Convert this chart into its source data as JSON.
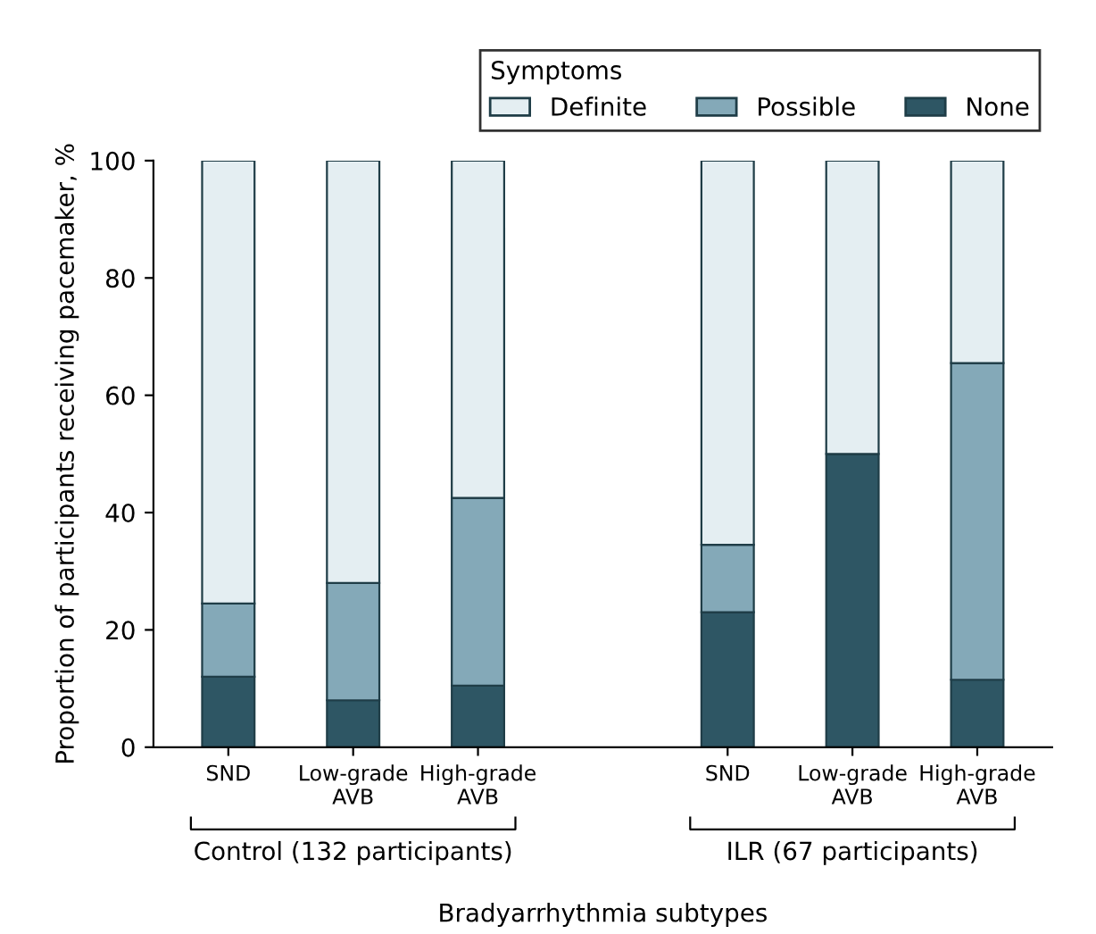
{
  "chart_data": {
    "type": "bar",
    "stacked": true,
    "xlabel": "Bradyarrhythmia subtypes",
    "ylabel": "Proportion of participants receiving pacemaker, %",
    "legend_title": "Symptoms",
    "categories": [
      "SND",
      "Low-grade AVB",
      "High-grade AVB",
      null,
      "SND",
      "Low-grade AVB",
      "High-grade AVB"
    ],
    "series": [
      {
        "name": "None",
        "color": "#2e5664",
        "values": [
          12,
          8,
          10.5,
          null,
          23,
          50,
          11.5
        ]
      },
      {
        "name": "Possible",
        "color": "#84a9b8",
        "values": [
          12.5,
          20,
          32,
          null,
          11.5,
          0,
          54
        ]
      },
      {
        "name": "Definite",
        "color": "#e4eef2",
        "values": [
          75.5,
          72,
          57.5,
          null,
          65.5,
          50,
          34.5
        ]
      }
    ],
    "annotations": [
      "Control (132 participants)",
      "ILR (67 participants)"
    ],
    "ylim": [
      0,
      100
    ],
    "yticks": [
      0,
      20,
      40,
      60,
      80,
      100
    ],
    "grid": false,
    "legend": "top right"
  }
}
